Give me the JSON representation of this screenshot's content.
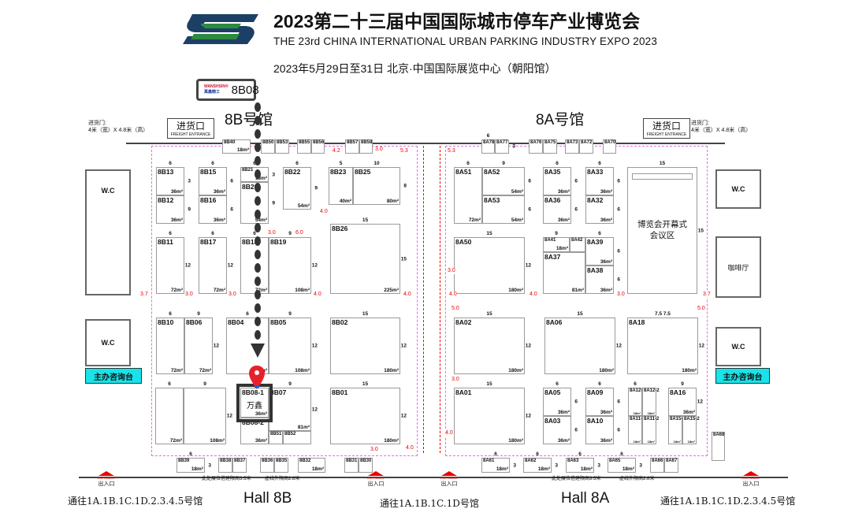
{
  "header": {
    "title": "2023第二十三届中国国际城市停车产业博览会",
    "subtitle": "THE 23rd CHINA INTERNATIONAL URBAN PARKING INDUSTRY EXPO 2023",
    "date_venue": "2023年5月29日至31日   北京·中国国际展览中心（朝阳馆）",
    "logo_icon": "expo-s-logo"
  },
  "callout": {
    "brand": "WANSHSIN®",
    "brand_cn": "萬鑫精工",
    "booth": "8B08",
    "color": "#444444"
  },
  "pin": {
    "label": "万鑫",
    "color": "#e8202a"
  },
  "halls": {
    "h8b_cn": "8B号馆",
    "h8a_cn": "8A号馆",
    "h8b_en": "Hall 8B",
    "h8a_en": "Hall 8A"
  },
  "freight": {
    "label_cn": "进货口",
    "label_en": "FREIGHT ENTRANCE",
    "door": "进货门:",
    "door_size": "4米（宽）X 4.8米（高）"
  },
  "facilities": {
    "wc": "W.C",
    "info": "主办咨询台",
    "cafe": "咖啡厅",
    "meeting": "博览会开幕式会议区",
    "meeting_top": "15",
    "meeting_side": "15"
  },
  "bottom": {
    "left_access": "通往1A.1B.1C.1D.2.3.4.5号馆",
    "mid_access": "通往1A.1B.1C.1D号馆",
    "right_access": "通往1A.1B.1C.1D.2.3.4.5号馆",
    "exit": "出入口",
    "entrance": "ENTRANCE",
    "height_note1": "此处展位搭建限高3.5米",
    "height_note2": "虚线外限高2.8米"
  },
  "colors": {
    "aisle": "#e00000",
    "hall_boundary": "#e26ee2",
    "info_desk": "#19e3e8",
    "logo_blue": "#1c3f66",
    "logo_green": "#2d8a3e"
  },
  "booths": [
    {
      "id": "8B40",
      "area": "18m²"
    },
    {
      "id": "8B50"
    },
    {
      "id": "8B53"
    },
    {
      "id": "8B55"
    },
    {
      "id": "8B56"
    },
    {
      "id": "8B57"
    },
    {
      "id": "8B58"
    },
    {
      "id": "8B13",
      "area": "36m²",
      "top": "6",
      "side": "3"
    },
    {
      "id": "8B12",
      "area": "36m²",
      "side": "9"
    },
    {
      "id": "8B15",
      "area": "36m²",
      "top": "6",
      "side": "6"
    },
    {
      "id": "8B16",
      "area": "36m²",
      "side": "6"
    },
    {
      "id": "8B21",
      "area": "18m²",
      "top": "6",
      "side": "3"
    },
    {
      "id": "8B20",
      "area": "54m²",
      "side": "9"
    },
    {
      "id": "8B22",
      "area": "54m²",
      "top": "6",
      "side": "9"
    },
    {
      "id": "8B23",
      "area": "40m²",
      "top": "5"
    },
    {
      "id": "8B25",
      "area": "80m²",
      "top": "10",
      "side": "8"
    },
    {
      "id": "8B26",
      "area": "225m²",
      "top": "15",
      "side": "15"
    },
    {
      "id": "8B11",
      "area": "72m²",
      "top": "6",
      "side": "12"
    },
    {
      "id": "8B17",
      "area": "72m²",
      "top": "6",
      "side": "12"
    },
    {
      "id": "8B18",
      "area": "72m²",
      "top": "6"
    },
    {
      "id": "8B19",
      "area": "108m²",
      "top": "9",
      "side": "12"
    },
    {
      "id": "8B10",
      "area": "72m²",
      "top": "6"
    },
    {
      "id": "8B06",
      "area": "72m²",
      "top": "9",
      "side": "12"
    },
    {
      "id": "8B04",
      "area": "72m²",
      "top": "6"
    },
    {
      "id": "8B05",
      "area": "108m²",
      "top": "9",
      "side": "12"
    },
    {
      "id": "8B02",
      "area": "180m²",
      "top": "15",
      "side": "12"
    },
    {
      "id": "",
      "area": "72m²",
      "top": "6"
    },
    {
      "id": "",
      "area": "108m²",
      "top": "9",
      "side": "12"
    },
    {
      "id": "8B08-1",
      "area": "36m²"
    },
    {
      "id": "8B08-2",
      "area": "36m²"
    },
    {
      "id": "8B07",
      "area": "81m²",
      "top": "9",
      "side": "12"
    },
    {
      "id": "8B51"
    },
    {
      "id": "8B52"
    },
    {
      "id": "8B01",
      "area": "180m²",
      "top": "15",
      "side": "12"
    },
    {
      "id": "8B39",
      "area": "18m²",
      "top": "6",
      "side": "3"
    },
    {
      "id": "8B38"
    },
    {
      "id": "8B37"
    },
    {
      "id": "8B36"
    },
    {
      "id": "8B35"
    },
    {
      "id": "8B32",
      "area": "18m²"
    },
    {
      "id": "8B31"
    },
    {
      "id": "8B30"
    },
    {
      "id": "8A78",
      "top": "6"
    },
    {
      "id": "8A77",
      "side": "3"
    },
    {
      "id": "8A76"
    },
    {
      "id": "8A75"
    },
    {
      "id": "8A73"
    },
    {
      "id": "8A72"
    },
    {
      "id": "8A70"
    },
    {
      "id": "8A51",
      "area": "72m²",
      "top": "6"
    },
    {
      "id": "8A52",
      "area": "54m²",
      "top": "9",
      "side": "6"
    },
    {
      "id": "8A53",
      "area": "54m²",
      "side": "6"
    },
    {
      "id": "8A35",
      "area": "36m²",
      "top": "6",
      "side": "6"
    },
    {
      "id": "8A36",
      "area": "36m²",
      "side": "6"
    },
    {
      "id": "8A33",
      "area": "36m²",
      "top": "6",
      "side": "6"
    },
    {
      "id": "8A32",
      "area": "36m²",
      "side": "6"
    },
    {
      "id": "8A50",
      "area": "180m²",
      "top": "15",
      "side": "12"
    },
    {
      "id": "8A41",
      "area": "18m²",
      "top": "9"
    },
    {
      "id": "8A42"
    },
    {
      "id": "8A37",
      "area": "81m²"
    },
    {
      "id": "8A39",
      "area": "36m²",
      "top": "6",
      "side": "6"
    },
    {
      "id": "8A38",
      "area": "36m²",
      "side": "6"
    },
    {
      "id": "8A02",
      "area": "180m²",
      "top": "15",
      "side": "12"
    },
    {
      "id": "8A06",
      "area": "180m²",
      "top": "15",
      "side": "12"
    },
    {
      "id": "8A18",
      "area": "180m²",
      "top": "7.5        7.5",
      "side": "12"
    },
    {
      "id": "8A01",
      "area": "180m²",
      "top": "15",
      "side": "12"
    },
    {
      "id": "8A05",
      "area": "36m²",
      "top": "6",
      "side": "6"
    },
    {
      "id": "8A03",
      "area": "36m²",
      "side": "6"
    },
    {
      "id": "8A09",
      "area": "36m²",
      "top": "6",
      "side": "6"
    },
    {
      "id": "8A10",
      "area": "36m²",
      "side": "6"
    },
    {
      "id": "8A12-1",
      "area": "18m²",
      "top": "6"
    },
    {
      "id": "8A12-2",
      "area": "18m²"
    },
    {
      "id": "8A11-1",
      "area": "18m²"
    },
    {
      "id": "8A11-2",
      "area": "18m²"
    },
    {
      "id": "8A16",
      "area": "36m²",
      "top": "9",
      "side": "12"
    },
    {
      "id": "8A15-1",
      "area": "18m²"
    },
    {
      "id": "8A15-2",
      "area": "18m²"
    },
    {
      "id": "8A68"
    },
    {
      "id": "8A61",
      "area": "18m²",
      "top": "6",
      "side": "3"
    },
    {
      "id": "8A62",
      "area": "18m²",
      "top": "6",
      "side": "3"
    },
    {
      "id": "8A63",
      "area": "18m²",
      "top": "6",
      "side": "3"
    },
    {
      "id": "8A65",
      "area": "18m²",
      "top": "6",
      "side": "3"
    },
    {
      "id": "8A66"
    },
    {
      "id": "8A67"
    }
  ],
  "aisles": [
    "3.7",
    "3.0",
    "3.0",
    "4.0",
    "4.0",
    "3.0",
    "6.0",
    "4.0",
    "4.2",
    "3.0",
    "5.3",
    "5.3",
    "3.0",
    "4.0",
    "4.0",
    "3.0",
    "3.7",
    "5.0",
    "3.0",
    "4.0",
    "3.0",
    "5.0",
    "4.0"
  ]
}
